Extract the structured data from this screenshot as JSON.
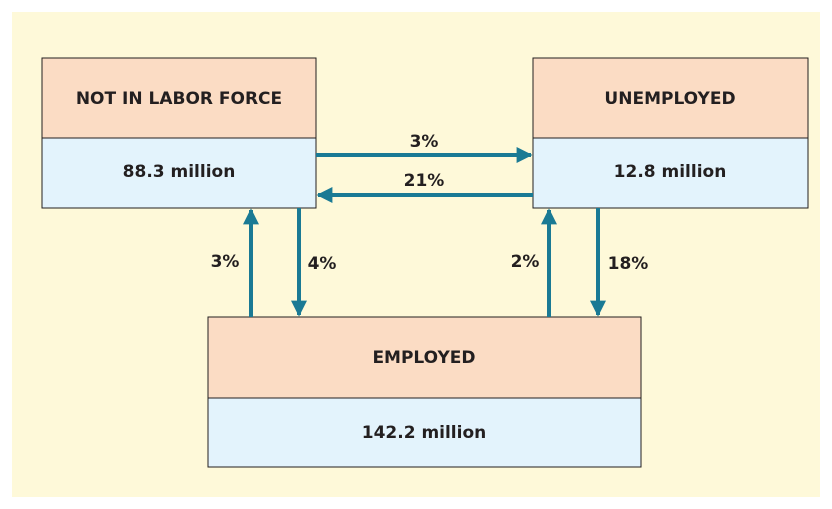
{
  "nodes": [
    {
      "label": "NOT IN LABOR FORCE",
      "value": "88.3 million"
    },
    {
      "label": "UNEMPLOYED",
      "value": "12.8 million"
    },
    {
      "label": "EMPLOYED",
      "value": "142.2 million"
    }
  ],
  "flows": [
    {
      "label": "3%"
    },
    {
      "label": "21%"
    },
    {
      "label": "3%"
    },
    {
      "label": "4%"
    },
    {
      "label": "2%"
    },
    {
      "label": "18%"
    }
  ]
}
